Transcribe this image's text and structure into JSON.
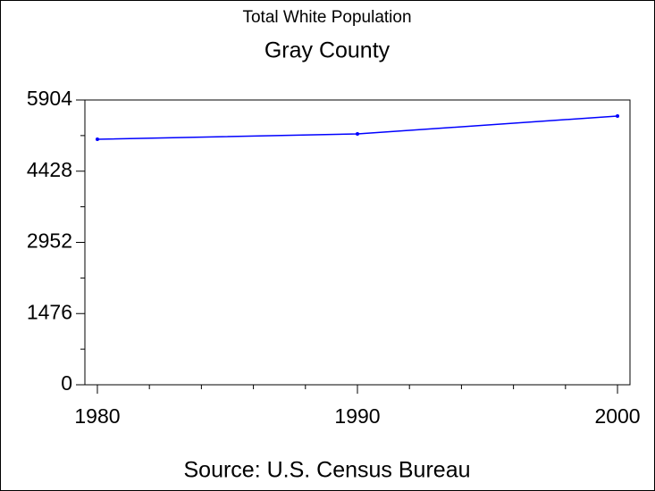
{
  "chart_data": {
    "type": "line",
    "title": "Total White Population",
    "subtitle": "Gray County",
    "source": "Source: U.S. Census Bureau",
    "x": [
      1980,
      1990,
      2000
    ],
    "series": [
      {
        "name": "Total White Population",
        "color": "#0000ff",
        "values": [
          5090,
          5201,
          5571
        ]
      }
    ],
    "xlim": [
      1979.52,
      2000.48
    ],
    "xticks": [
      1980,
      1990,
      2000
    ],
    "xminorticks": [
      1982,
      1984,
      1986,
      1988,
      1992,
      1994,
      1996,
      1998
    ],
    "ylim": [
      0,
      5904
    ],
    "yticks": [
      0,
      1476,
      2952,
      4428,
      5904
    ],
    "yminorticks": [
      738,
      2214,
      3690,
      5166
    ]
  }
}
